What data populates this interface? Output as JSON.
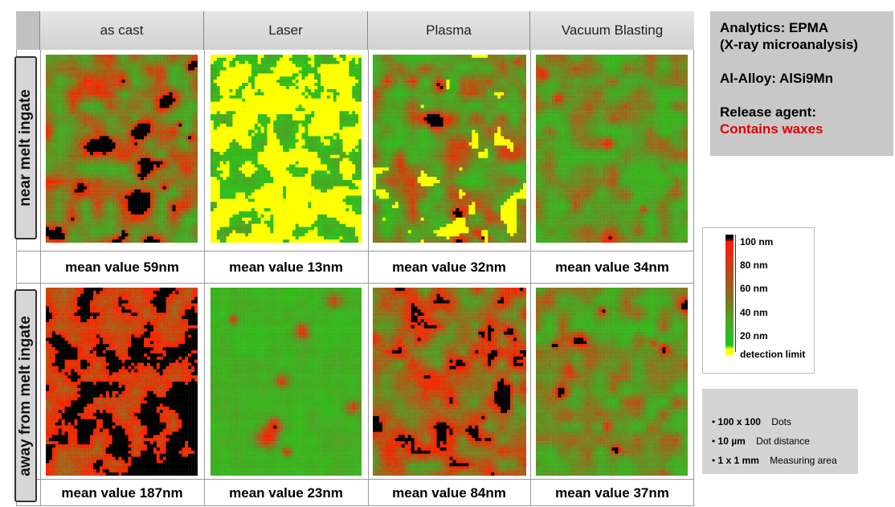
{
  "header": {
    "columns": [
      "as cast",
      "Laser",
      "Plasma",
      "Vacuum Blasting"
    ]
  },
  "rows": [
    {
      "label": "near melt ingate",
      "means": [
        "mean value 59nm",
        "mean value 13nm",
        "mean value 32nm",
        "mean value 34nm"
      ]
    },
    {
      "label": "away from melt ingate",
      "means": [
        "mean value 187nm",
        "mean value 23nm",
        "mean value 84nm",
        "mean value 37nm"
      ]
    }
  ],
  "info": {
    "analytics": "Analytics:  EPMA",
    "analytics_sub": "(X-ray microanalysis)",
    "alloy": "Al-Alloy:  AlSi9Mn",
    "release_label": "Release agent:",
    "release_value": "Contains waxes",
    "accent_color": "#e00000"
  },
  "legend": {
    "labels": [
      "100 nm",
      "80 nm",
      "60 nm",
      "40 nm",
      "20 nm",
      "detection limit"
    ]
  },
  "spec": {
    "items": [
      {
        "value": "100 x 100",
        "label": "Dots"
      },
      {
        "value": "10 µm",
        "label": "Dot distance"
      },
      {
        "value": "1 x 1 mm",
        "label": "Measuring area"
      }
    ]
  },
  "colors": {
    "high": "#ff2000",
    "mid": "#9a6a1c",
    "low": "#2ac41a",
    "limit": "#ffff00",
    "over": "#000000"
  }
}
